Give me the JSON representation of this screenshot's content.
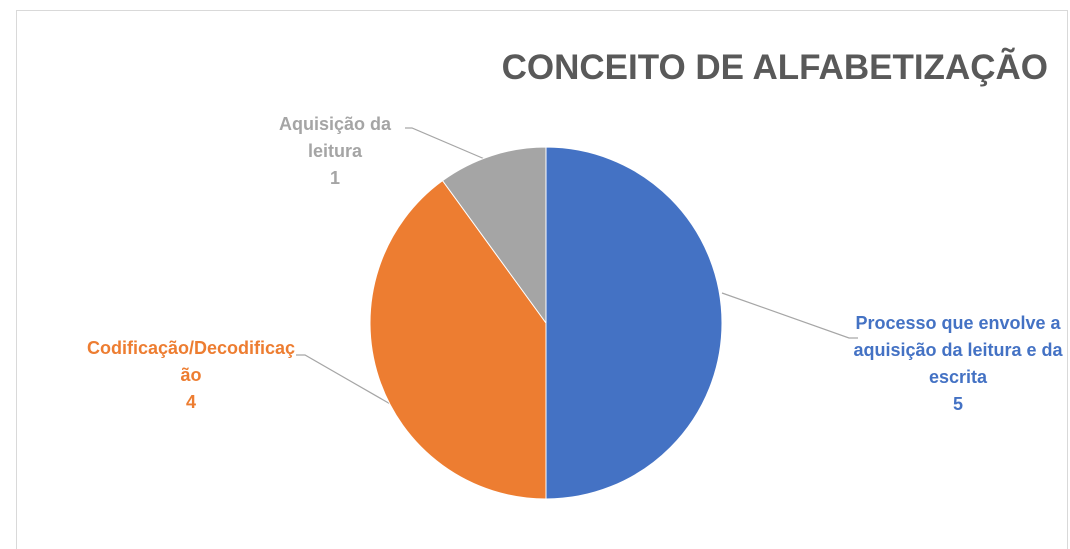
{
  "chart_data": {
    "type": "pie",
    "title": "CONCEITO DE ALFABETIZAÇÃO",
    "categories": [
      "Processo que envolve a aquisição da leitura e da escrita",
      "Codificação/Decodificação",
      "Aquisição da leitura"
    ],
    "values": [
      5,
      4,
      1
    ],
    "colors": [
      "#4472c4",
      "#ed7d31",
      "#a5a5a5"
    ]
  }
}
